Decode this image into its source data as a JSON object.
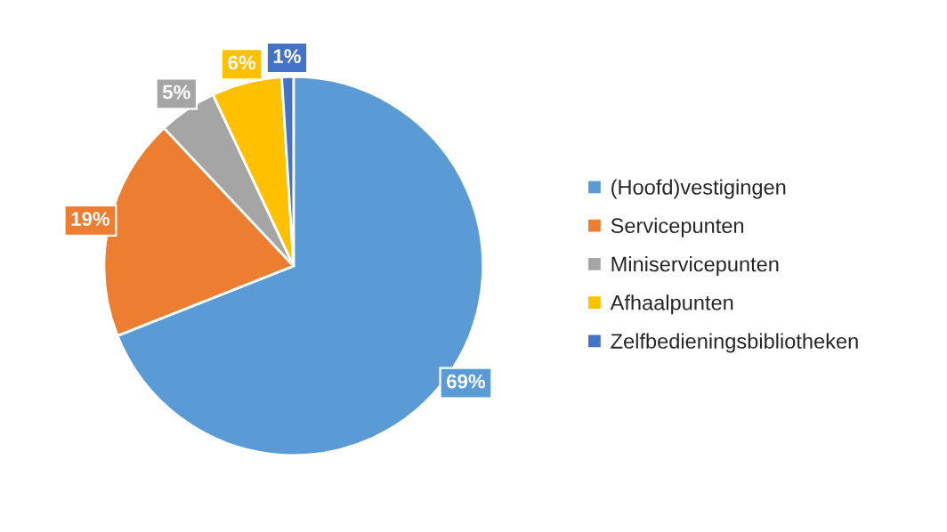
{
  "chart_data": {
    "type": "pie",
    "categories": [
      "(Hoofd)vestigingen",
      "Servicepunten",
      "Miniservicepunten",
      "Afhaalpunten",
      "Zelfbedieningsbibliotheken"
    ],
    "values": [
      69,
      19,
      5,
      6,
      1
    ],
    "colors": [
      "#5b9bd5",
      "#ed7d31",
      "#a5a5a5",
      "#ffc000",
      "#4472c4"
    ],
    "value_labels": [
      "69%",
      "19%",
      "5%",
      "6%",
      "1%"
    ],
    "legend": "right"
  }
}
